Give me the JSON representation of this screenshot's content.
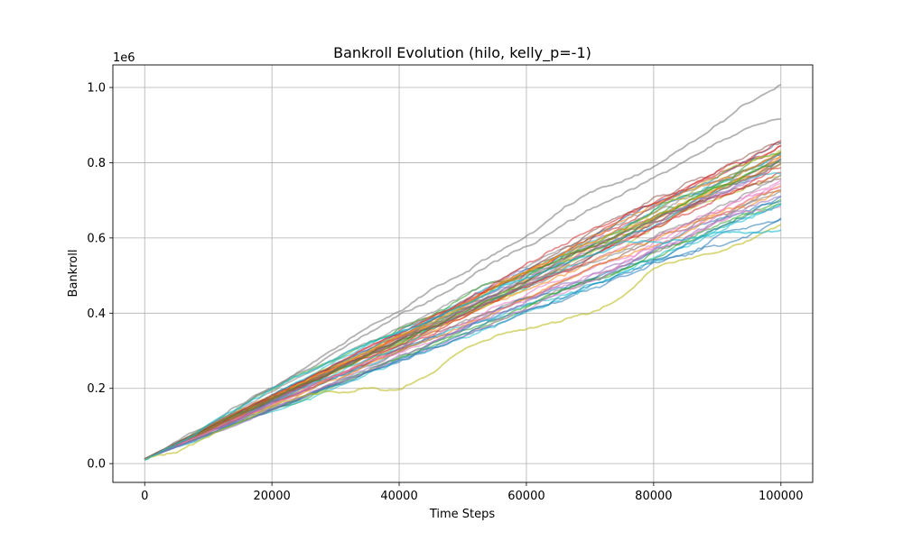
{
  "chart_data": {
    "type": "line",
    "title": "Bankroll Evolution (hilo, kelly_p=-1)",
    "xlabel": "Time Steps",
    "ylabel": "Bankroll",
    "y_multiplier_label": "1e6",
    "xlim": [
      -5000,
      105000
    ],
    "ylim": [
      -0.05,
      1.06
    ],
    "x_ticks": [
      0,
      20000,
      40000,
      60000,
      80000,
      100000
    ],
    "x_tick_labels": [
      "0",
      "20000",
      "40000",
      "60000",
      "80000",
      "100000"
    ],
    "y_ticks": [
      0.0,
      0.2,
      0.4,
      0.6,
      0.8,
      1.0
    ],
    "y_tick_labels": [
      "0.0",
      "0.2",
      "0.4",
      "0.6",
      "0.8",
      "1.0"
    ],
    "grid": true,
    "line_alpha": 0.55,
    "palette": [
      "#1f77b4",
      "#ff7f0e",
      "#2ca02c",
      "#d62728",
      "#9467bd",
      "#8c564b",
      "#e377c2",
      "#7f7f7f",
      "#bcbd22",
      "#17becf"
    ],
    "series_count": 50,
    "x": [
      0,
      5000,
      10000,
      15000,
      20000,
      25000,
      30000,
      35000,
      40000,
      45000,
      50000,
      55000,
      60000,
      65000,
      70000,
      75000,
      80000,
      85000,
      90000,
      95000,
      100000
    ],
    "highlighted_series": [
      {
        "name": "top-gray",
        "color": "#7f7f7f",
        "values": [
          0.01,
          0.06,
          0.11,
          0.16,
          0.21,
          0.26,
          0.31,
          0.36,
          0.41,
          0.46,
          0.51,
          0.56,
          0.61,
          0.67,
          0.72,
          0.75,
          0.79,
          0.84,
          0.9,
          0.96,
          1.005
        ]
      },
      {
        "name": "second-gray",
        "color": "#7f7f7f",
        "values": [
          0.01,
          0.05,
          0.1,
          0.15,
          0.2,
          0.25,
          0.3,
          0.35,
          0.4,
          0.44,
          0.49,
          0.54,
          0.58,
          0.63,
          0.68,
          0.72,
          0.76,
          0.8,
          0.85,
          0.89,
          0.91
        ]
      },
      {
        "name": "low-olive",
        "color": "#bcbd22",
        "values": [
          0.01,
          0.03,
          0.07,
          0.11,
          0.15,
          0.18,
          0.19,
          0.2,
          0.2,
          0.24,
          0.3,
          0.34,
          0.36,
          0.38,
          0.4,
          0.44,
          0.52,
          0.55,
          0.57,
          0.6,
          0.635
        ]
      },
      {
        "name": "low-cyan",
        "color": "#17becf",
        "values": [
          0.01,
          0.05,
          0.1,
          0.15,
          0.2,
          0.24,
          0.28,
          0.32,
          0.35,
          0.38,
          0.42,
          0.46,
          0.5,
          0.53,
          0.55,
          0.58,
          0.59,
          0.6,
          0.61,
          0.61,
          0.62
        ]
      }
    ],
    "bundle": {
      "start": 0.012,
      "end_min": 0.66,
      "end_max": 0.86,
      "seed": 12345
    }
  }
}
